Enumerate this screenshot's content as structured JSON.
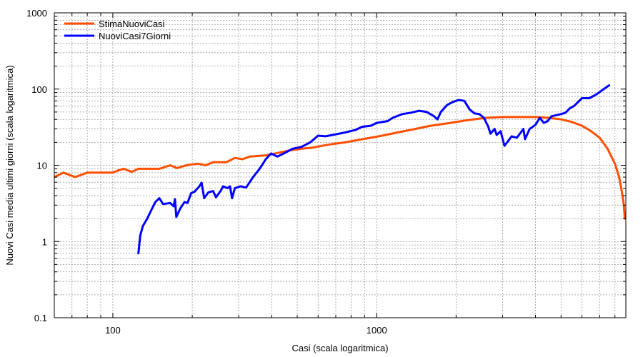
{
  "chart_data": {
    "type": "line",
    "title": "",
    "xlabel": "Casi (scala logaritmica)",
    "ylabel": "Nuovi Casi media ultimi giorni (scala logaritmica)",
    "xscale": "log",
    "yscale": "log",
    "xlim": [
      60,
      8800
    ],
    "ylim": [
      0.1,
      1000
    ],
    "grid": true,
    "legend_position": "top-left",
    "x_ticks": [
      {
        "value": 100,
        "label": "100"
      },
      {
        "value": 1000,
        "label": "1000"
      }
    ],
    "y_ticks": [
      {
        "value": 0.1,
        "label": "0.1"
      },
      {
        "value": 1,
        "label": "1"
      },
      {
        "value": 10,
        "label": "10"
      },
      {
        "value": 100,
        "label": "100"
      },
      {
        "value": 1000,
        "label": "1000"
      }
    ],
    "series": [
      {
        "name": "StimaNuoviCasi",
        "color": "#ff4f00",
        "points": [
          [
            60,
            7
          ],
          [
            65,
            8
          ],
          [
            72,
            7
          ],
          [
            80,
            8
          ],
          [
            95,
            8
          ],
          [
            100,
            8
          ],
          [
            105,
            8.6
          ],
          [
            110,
            9
          ],
          [
            118,
            8.2
          ],
          [
            125,
            9
          ],
          [
            150,
            9
          ],
          [
            165,
            10
          ],
          [
            175,
            9.2
          ],
          [
            190,
            10
          ],
          [
            210,
            10.5
          ],
          [
            225,
            10
          ],
          [
            240,
            11
          ],
          [
            270,
            11
          ],
          [
            290,
            12.5
          ],
          [
            310,
            12
          ],
          [
            330,
            13
          ],
          [
            380,
            13.5
          ],
          [
            420,
            14.5
          ],
          [
            460,
            15.5
          ],
          [
            520,
            16.5
          ],
          [
            570,
            17
          ],
          [
            620,
            18
          ],
          [
            680,
            19
          ],
          [
            760,
            20
          ],
          [
            850,
            21.5
          ],
          [
            950,
            23
          ],
          [
            1050,
            24.5
          ],
          [
            1200,
            27
          ],
          [
            1400,
            30
          ],
          [
            1600,
            33
          ],
          [
            1900,
            36
          ],
          [
            2200,
            39
          ],
          [
            2600,
            42
          ],
          [
            3000,
            43
          ],
          [
            3500,
            43
          ],
          [
            4000,
            43
          ],
          [
            4500,
            42
          ],
          [
            5000,
            40
          ],
          [
            5500,
            37
          ],
          [
            6000,
            33
          ],
          [
            6500,
            28
          ],
          [
            7000,
            23
          ],
          [
            7500,
            16.5
          ],
          [
            8000,
            10.5
          ],
          [
            8300,
            7
          ],
          [
            8500,
            4.5
          ],
          [
            8650,
            3
          ],
          [
            8720,
            2
          ]
        ]
      },
      {
        "name": "NuoviCasi7Giorni",
        "color": "#0000ff",
        "points": [
          [
            125,
            0.7
          ],
          [
            127,
            1.2
          ],
          [
            130,
            1.6
          ],
          [
            135,
            2
          ],
          [
            140,
            2.6
          ],
          [
            145,
            3.3
          ],
          [
            150,
            3.7
          ],
          [
            155,
            3.1
          ],
          [
            165,
            3.2
          ],
          [
            170,
            2.9
          ],
          [
            172,
            3.6
          ],
          [
            174,
            2.1
          ],
          [
            180,
            2.7
          ],
          [
            187,
            3.3
          ],
          [
            192,
            3.2
          ],
          [
            198,
            4.3
          ],
          [
            204,
            4.5
          ],
          [
            212,
            5.2
          ],
          [
            217,
            5.9
          ],
          [
            222,
            3.7
          ],
          [
            230,
            4.4
          ],
          [
            240,
            4.6
          ],
          [
            246,
            3.8
          ],
          [
            256,
            4.6
          ],
          [
            262,
            5.3
          ],
          [
            272,
            5.0
          ],
          [
            278,
            5.3
          ],
          [
            283,
            3.7
          ],
          [
            290,
            5.0
          ],
          [
            305,
            5.3
          ],
          [
            320,
            5.1
          ],
          [
            340,
            7
          ],
          [
            360,
            9
          ],
          [
            380,
            12
          ],
          [
            398,
            14.3
          ],
          [
            420,
            13
          ],
          [
            450,
            14.6
          ],
          [
            480,
            16.5
          ],
          [
            520,
            17.5
          ],
          [
            560,
            20
          ],
          [
            600,
            24.5
          ],
          [
            640,
            24
          ],
          [
            700,
            25.5
          ],
          [
            760,
            27
          ],
          [
            830,
            29
          ],
          [
            880,
            32
          ],
          [
            950,
            33
          ],
          [
            1000,
            36
          ],
          [
            1100,
            38
          ],
          [
            1150,
            42
          ],
          [
            1250,
            47
          ],
          [
            1350,
            49
          ],
          [
            1450,
            52
          ],
          [
            1550,
            50
          ],
          [
            1650,
            44
          ],
          [
            1700,
            40
          ],
          [
            1750,
            50
          ],
          [
            1850,
            62
          ],
          [
            1950,
            68
          ],
          [
            2050,
            72
          ],
          [
            2150,
            70
          ],
          [
            2250,
            54
          ],
          [
            2350,
            48
          ],
          [
            2450,
            47
          ],
          [
            2550,
            42
          ],
          [
            2650,
            32
          ],
          [
            2700,
            26
          ],
          [
            2800,
            30
          ],
          [
            2850,
            25
          ],
          [
            2950,
            28
          ],
          [
            3050,
            18
          ],
          [
            3250,
            24
          ],
          [
            3400,
            23
          ],
          [
            3600,
            30
          ],
          [
            3650,
            22
          ],
          [
            3800,
            30
          ],
          [
            4000,
            34
          ],
          [
            4150,
            42
          ],
          [
            4300,
            36
          ],
          [
            4450,
            38
          ],
          [
            4600,
            44
          ],
          [
            5000,
            47
          ],
          [
            5200,
            49
          ],
          [
            5400,
            56
          ],
          [
            5600,
            60
          ],
          [
            6000,
            76
          ],
          [
            6400,
            76
          ],
          [
            6800,
            85
          ],
          [
            7200,
            98
          ],
          [
            7600,
            112
          ]
        ]
      }
    ]
  }
}
